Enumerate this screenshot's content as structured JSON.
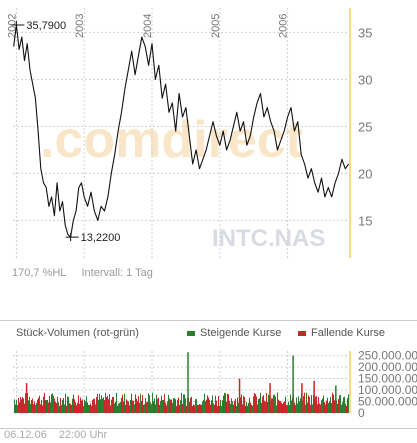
{
  "chart_data": [
    {
      "type": "line",
      "title": "",
      "xlabel": "",
      "ylabel": "",
      "x_tick_labels": [
        "2002",
        "2003",
        "2004",
        "2005",
        "2006"
      ],
      "y_ticks": [
        15,
        20,
        25,
        30,
        35
      ],
      "ylim": [
        11.0,
        37.6
      ],
      "xlim": [
        2001.95,
        2006.92
      ],
      "grid": true,
      "series": [
        {
          "x": [
            2001.96,
            2002.0,
            2002.04,
            2002.08,
            2002.12,
            2002.16,
            2002.2,
            2002.24,
            2002.28,
            2002.32,
            2002.36,
            2002.4,
            2002.44,
            2002.48,
            2002.52,
            2002.56,
            2002.6,
            2002.64,
            2002.68,
            2002.72,
            2002.76,
            2002.8,
            2002.84,
            2002.88,
            2002.92,
            2002.96,
            2003.0,
            2003.05,
            2003.1,
            2003.15,
            2003.2,
            2003.25,
            2003.3,
            2003.35,
            2003.4,
            2003.45,
            2003.5,
            2003.55,
            2003.6,
            2003.65,
            2003.7,
            2003.75,
            2003.8,
            2003.85,
            2003.9,
            2003.95,
            2004.0,
            2004.05,
            2004.1,
            2004.15,
            2004.2,
            2004.25,
            2004.3,
            2004.35,
            2004.4,
            2004.45,
            2004.5,
            2004.55,
            2004.6,
            2004.65,
            2004.7,
            2004.75,
            2004.8,
            2004.85,
            2004.9,
            2004.95,
            2005.0,
            2005.05,
            2005.1,
            2005.15,
            2005.2,
            2005.25,
            2005.3,
            2005.35,
            2005.4,
            2005.45,
            2005.5,
            2005.55,
            2005.6,
            2005.65,
            2005.7,
            2005.75,
            2005.8,
            2005.85,
            2005.9,
            2005.95,
            2006.0,
            2006.05,
            2006.1,
            2006.15,
            2006.2,
            2006.25,
            2006.3,
            2006.35,
            2006.4,
            2006.45,
            2006.5,
            2006.55,
            2006.6,
            2006.65,
            2006.7,
            2006.75,
            2006.8,
            2006.85,
            2006.9
          ],
          "y": [
            33.5,
            35.79,
            33.2,
            34.5,
            32.0,
            33.8,
            31.0,
            29.5,
            28.0,
            24.5,
            20.5,
            19.0,
            18.5,
            16.5,
            17.5,
            15.5,
            19.0,
            16.0,
            17.0,
            14.5,
            13.5,
            13.22,
            15.0,
            16.0,
            18.5,
            19.0,
            17.5,
            16.5,
            18.0,
            16.0,
            15.0,
            16.5,
            16.0,
            17.5,
            20.0,
            22.0,
            24.5,
            26.5,
            29.0,
            31.0,
            33.0,
            30.5,
            32.5,
            34.5,
            33.5,
            31.5,
            33.8,
            30.0,
            31.5,
            28.0,
            29.5,
            26.5,
            27.5,
            24.5,
            28.5,
            26.0,
            27.0,
            24.0,
            21.0,
            22.5,
            20.5,
            21.5,
            22.5,
            24.0,
            25.5,
            24.0,
            23.0,
            24.5,
            22.5,
            23.5,
            25.0,
            26.5,
            24.5,
            25.5,
            23.0,
            24.0,
            26.0,
            27.5,
            28.5,
            26.0,
            27.0,
            25.5,
            24.5,
            22.5,
            23.5,
            24.5,
            26.0,
            27.0,
            24.5,
            25.5,
            22.0,
            21.0,
            19.5,
            20.5,
            19.0,
            18.0,
            19.5,
            17.5,
            18.5,
            17.5,
            19.0,
            20.0,
            21.5,
            20.5,
            21.0
          ]
        }
      ],
      "annotations": [
        {
          "x": 2002.0,
          "y": 35.79,
          "text": "35,7900"
        },
        {
          "x": 2002.8,
          "y": 13.22,
          "text": "13,2200"
        }
      ]
    },
    {
      "type": "bar",
      "title": "Stück-Volumen (rot-grün)",
      "xlabel": "",
      "ylabel": "",
      "y_tick_labels": [
        "250.000.000",
        "200.000.000",
        "150.000.000",
        "100.000.000",
        "50.000.000",
        "0"
      ],
      "y_ticks": [
        250000000,
        200000000,
        150000000,
        100000000,
        50000000,
        0
      ],
      "ylim": [
        0,
        270000000
      ],
      "legend": "top-right",
      "series": [
        {
          "name": "Steigende Kurse",
          "color": "#2e7d32"
        },
        {
          "name": "Fallende Kurse",
          "color": "#c62828"
        }
      ],
      "typical_range": [
        30000000,
        90000000
      ],
      "spikes": [
        {
          "x": 2002.14,
          "value": 130000000
        },
        {
          "x": 2004.52,
          "value": 265000000
        },
        {
          "x": 2005.28,
          "value": 150000000
        },
        {
          "x": 2005.73,
          "value": 130000000
        },
        {
          "x": 2006.07,
          "value": 250000000
        },
        {
          "x": 2006.2,
          "value": 130000000
        },
        {
          "x": 2006.38,
          "value": 140000000
        },
        {
          "x": 2006.7,
          "value": 120000000
        }
      ]
    }
  ],
  "watermark": {
    "brand": ".comdirect",
    "symbol": "INTC.NAS"
  },
  "info": {
    "range": "170,7 %HL",
    "interval": "Intervall: 1 Tag"
  },
  "footer": {
    "date": "06.12.06",
    "time": "22:00 Uhr"
  },
  "colors": {
    "line": "#111111",
    "grid": "#cfcfcf",
    "axis_accent": "#f5dc8a",
    "up": "#2e7d32",
    "down": "#c62828",
    "watermark": "#f3c987"
  }
}
